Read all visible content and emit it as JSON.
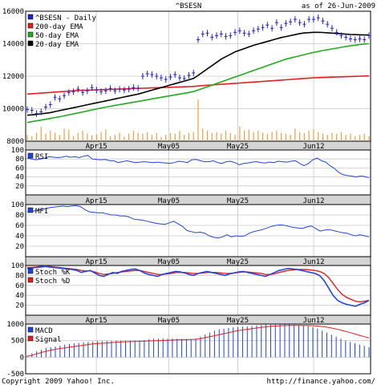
{
  "header": {
    "symbol": "^BSESN",
    "as_of": "as of 26-Jun-2009"
  },
  "footer": {
    "copyright": "Copyright 2009 Yahoo! Inc.",
    "url": "http://finance.yahoo.com/"
  },
  "x_labels": [
    "Apr15",
    "May05",
    "May25",
    "Jun12"
  ],
  "colors": {
    "price": "#2222cc",
    "ema200": "#e02020",
    "ema50": "#22aa22",
    "ema20": "#000000",
    "volume": "#e8a040",
    "osc": "#2244dd",
    "stoch_d": "#e02020",
    "grid": "#c8c8c8",
    "frame": "#000000",
    "label_band": "#d4d4d4"
  },
  "chart_data": [
    {
      "type": "line",
      "panel": "price",
      "ylim": [
        8000,
        16000
      ],
      "yticks": [
        8000,
        10000,
        12000,
        14000,
        16000
      ],
      "legend": [
        "^BSESN - Daily",
        "200-day EMA",
        "50-day EMA",
        "20-day EMA"
      ],
      "series": [
        {
          "name": "^BSESN - Daily",
          "style": "ohlc-ticks",
          "values": [
            9950,
            9900,
            9700,
            9800,
            10100,
            10250,
            10700,
            10600,
            10800,
            11000,
            11050,
            11200,
            11000,
            11100,
            11300,
            11150,
            11050,
            11100,
            11250,
            11100,
            11200,
            11150,
            11200,
            11300,
            11250,
            12000,
            12150,
            12100,
            12000,
            11900,
            11800,
            11950,
            12100,
            11900,
            11850,
            12050,
            12200,
            14250,
            14600,
            14650,
            14400,
            14500,
            14600,
            14450,
            14500,
            14700,
            14800,
            14650,
            14600,
            14800,
            14900,
            15000,
            15150,
            14950,
            15300,
            15000,
            15250,
            15350,
            15500,
            15300,
            15200,
            15500,
            15500,
            15600,
            15400,
            15200,
            14950,
            14700,
            14500,
            14400,
            14300,
            14250,
            14300,
            14250,
            14500
          ]
        },
        {
          "name": "200-day EMA",
          "values": [
            10900,
            10920,
            10940,
            10960,
            10980,
            11000,
            11020,
            11040,
            11060,
            11080,
            11100,
            11120,
            11130,
            11140,
            11150,
            11160,
            11170,
            11180,
            11190,
            11200,
            11210,
            11220,
            11230,
            11240,
            11250,
            11260,
            11270,
            11280,
            11290,
            11300,
            11310,
            11320,
            11330,
            11340,
            11350,
            11360,
            11370,
            11400,
            11420,
            11440,
            11460,
            11480,
            11500,
            11520,
            11540,
            11560,
            11580,
            11600,
            11620,
            11640,
            11660,
            11680,
            11700,
            11720,
            11740,
            11760,
            11780,
            11800,
            11820,
            11840,
            11860,
            11880,
            11900,
            11910,
            11920,
            11930,
            11940,
            11950,
            11960,
            11970,
            11980,
            11990,
            12000,
            12010,
            12020
          ]
        },
        {
          "name": "50-day EMA",
          "values": [
            9150,
            9200,
            9250,
            9300,
            9350,
            9400,
            9450,
            9500,
            9560,
            9620,
            9680,
            9740,
            9800,
            9860,
            9920,
            9980,
            10040,
            10100,
            10150,
            10200,
            10250,
            10300,
            10350,
            10400,
            10450,
            10500,
            10550,
            10600,
            10650,
            10700,
            10750,
            10800,
            10850,
            10900,
            10950,
            11000,
            11050,
            11150,
            11250,
            11350,
            11450,
            11550,
            11650,
            11750,
            11850,
            11950,
            12050,
            12150,
            12250,
            12350,
            12450,
            12550,
            12650,
            12750,
            12850,
            12950,
            13050,
            13120,
            13190,
            13260,
            13330,
            13400,
            13460,
            13520,
            13580,
            13630,
            13680,
            13730,
            13780,
            13830,
            13870,
            13910,
            13950,
            13980,
            14000
          ]
        },
        {
          "name": "20-day EMA",
          "values": [
            9600,
            9620,
            9650,
            9680,
            9720,
            9760,
            9820,
            9880,
            9940,
            10000,
            10060,
            10120,
            10180,
            10240,
            10300,
            10360,
            10420,
            10480,
            10540,
            10600,
            10660,
            10720,
            10780,
            10840,
            10900,
            10980,
            11060,
            11140,
            11220,
            11300,
            11380,
            11460,
            11540,
            11620,
            11700,
            11780,
            11860,
            12050,
            12250,
            12450,
            12650,
            12850,
            13050,
            13200,
            13350,
            13500,
            13600,
            13700,
            13800,
            13900,
            13980,
            14060,
            14140,
            14220,
            14300,
            14380,
            14440,
            14500,
            14560,
            14620,
            14660,
            14680,
            14700,
            14700,
            14690,
            14670,
            14650,
            14630,
            14610,
            14590,
            14570,
            14560,
            14550,
            14540,
            14540
          ]
        }
      ],
      "volume": [
        0.15,
        0.12,
        0.2,
        0.35,
        0.18,
        0.25,
        0.2,
        0.15,
        0.3,
        0.28,
        0.12,
        0.2,
        0.25,
        0.18,
        0.14,
        0.16,
        0.22,
        0.28,
        0.12,
        0.15,
        0.2,
        0.1,
        0.18,
        0.25,
        0.2,
        0.18,
        0.22,
        0.15,
        0.2,
        0.1,
        0.15,
        0.2,
        0.18,
        0.25,
        0.15,
        0.2,
        0.22,
        1.0,
        0.3,
        0.25,
        0.2,
        0.22,
        0.18,
        0.25,
        0.2,
        0.15,
        0.35,
        0.25,
        0.28,
        0.22,
        0.25,
        0.2,
        0.18,
        0.22,
        0.25,
        0.2,
        0.18,
        0.15,
        0.3,
        0.22,
        0.2,
        0.25,
        0.28,
        0.22,
        0.18,
        0.15,
        0.2,
        0.18,
        0.22,
        0.15,
        0.18,
        0.12,
        0.15,
        0.18,
        0.12
      ]
    },
    {
      "type": "line",
      "panel": "rsi",
      "ylim": [
        0,
        100
      ],
      "yticks": [
        20,
        40,
        60,
        80,
        100
      ],
      "legend": [
        "RSI"
      ],
      "series": [
        {
          "name": "RSI",
          "values": [
            82,
            80,
            78,
            80,
            82,
            85,
            84,
            83,
            84,
            86,
            84,
            85,
            83,
            86,
            88,
            80,
            79,
            78,
            79,
            76,
            76,
            72,
            74,
            76,
            74,
            72,
            73,
            74,
            73,
            72,
            73,
            72,
            71,
            70,
            72,
            75,
            74,
            72,
            78,
            79,
            76,
            74,
            74,
            76,
            72,
            70,
            74,
            75,
            72,
            67,
            70,
            71,
            73,
            74,
            72,
            71,
            73,
            72,
            75,
            74,
            73,
            75,
            76,
            70,
            65,
            70,
            78,
            82,
            76,
            73,
            65,
            59,
            50,
            45,
            43,
            42,
            40,
            42,
            41,
            38
          ]
        }
      ]
    },
    {
      "type": "line",
      "panel": "mfi",
      "ylim": [
        0,
        100
      ],
      "yticks": [
        20,
        40,
        60,
        80,
        100
      ],
      "legend": [
        "MFI"
      ],
      "series": [
        {
          "name": "MFI",
          "values": [
            86,
            87,
            88,
            90,
            92,
            94,
            95,
            96,
            97,
            96,
            97,
            98,
            96,
            90,
            86,
            85,
            84,
            84,
            82,
            80,
            80,
            78,
            78,
            76,
            72,
            71,
            70,
            68,
            66,
            64,
            63,
            62,
            65,
            68,
            63,
            58,
            50,
            48,
            46,
            47,
            45,
            40,
            37,
            36,
            38,
            42,
            38,
            40,
            39,
            40,
            45,
            48,
            50,
            52,
            55,
            58,
            60,
            61,
            60,
            58,
            56,
            55,
            54,
            57,
            59,
            54,
            49,
            51,
            52,
            50,
            48,
            46,
            45,
            42,
            40,
            42,
            40,
            38
          ]
        }
      ]
    },
    {
      "type": "line",
      "panel": "stoch",
      "ylim": [
        0,
        100
      ],
      "yticks": [
        20,
        40,
        60,
        80,
        100
      ],
      "legend": [
        "Stoch %K",
        "Stoch %D"
      ],
      "series": [
        {
          "name": "Stoch %K",
          "values": [
            94,
            95,
            96,
            97,
            98,
            97,
            96,
            95,
            94,
            93,
            92,
            90,
            86,
            88,
            90,
            85,
            80,
            78,
            82,
            86,
            84,
            88,
            90,
            92,
            93,
            90,
            85,
            82,
            80,
            78,
            82,
            84,
            86,
            88,
            87,
            85,
            82,
            80,
            84,
            86,
            88,
            86,
            84,
            82,
            80,
            83,
            85,
            87,
            88,
            86,
            84,
            82,
            80,
            78,
            82,
            86,
            90,
            92,
            94,
            93,
            92,
            90,
            88,
            86,
            84,
            80,
            70,
            55,
            40,
            30,
            25,
            22,
            20,
            18,
            22,
            25,
            30
          ]
        },
        {
          "name": "Stoch %D",
          "values": [
            96,
            96,
            97,
            98,
            99,
            98,
            97,
            96,
            95,
            94,
            93,
            92,
            90,
            89,
            89,
            87,
            84,
            82,
            83,
            84,
            86,
            87,
            88,
            89,
            90,
            90,
            88,
            86,
            84,
            82,
            82,
            83,
            84,
            86,
            86,
            86,
            85,
            84,
            84,
            85,
            86,
            86,
            86,
            85,
            84,
            84,
            85,
            86,
            87,
            87,
            86,
            85,
            84,
            82,
            82,
            83,
            86,
            88,
            90,
            91,
            92,
            92,
            92,
            91,
            90,
            88,
            84,
            76,
            64,
            52,
            42,
            36,
            32,
            28,
            27,
            28,
            30
          ]
        }
      ]
    },
    {
      "type": "bar",
      "panel": "macd",
      "ylim": [
        -500,
        1000
      ],
      "yticks": [
        -500,
        0,
        500,
        1000
      ],
      "legend": [
        "MACD",
        "Signal"
      ],
      "series": [
        {
          "name": "MACD",
          "values": [
            50,
            120,
            180,
            220,
            280,
            300,
            320,
            350,
            380,
            400,
            420,
            430,
            450,
            460,
            470,
            480,
            480,
            490,
            490,
            500,
            500,
            500,
            500,
            500,
            500,
            520,
            540,
            560,
            560,
            570,
            560,
            560,
            560,
            550,
            550,
            550,
            560,
            620,
            680,
            740,
            800,
            840,
            860,
            880,
            900,
            910,
            920,
            930,
            940,
            960,
            970,
            980,
            980,
            990,
            990,
            990,
            990,
            980,
            970,
            960,
            940,
            900,
            860,
            800,
            740,
            680,
            620,
            560,
            500,
            460,
            420,
            380,
            340,
            300
          ]
        },
        {
          "name": "Signal",
          "values": [
            30,
            60,
            100,
            140,
            180,
            210,
            240,
            260,
            280,
            300,
            320,
            340,
            360,
            380,
            400,
            410,
            420,
            430,
            440,
            450,
            460,
            465,
            470,
            475,
            480,
            485,
            490,
            495,
            500,
            505,
            510,
            515,
            520,
            525,
            530,
            535,
            540,
            560,
            590,
            620,
            650,
            680,
            710,
            740,
            770,
            800,
            820,
            840,
            860,
            880,
            900,
            915,
            930,
            940,
            950,
            955,
            960,
            960,
            960,
            958,
            955,
            950,
            940,
            925,
            905,
            880,
            850,
            815,
            780,
            740,
            700,
            660,
            620,
            580
          ]
        }
      ]
    }
  ]
}
